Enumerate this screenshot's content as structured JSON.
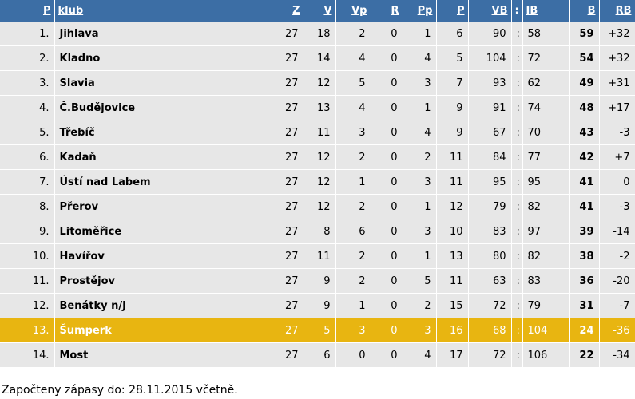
{
  "columns": {
    "pos": "P",
    "club": "klub",
    "z": "Z",
    "v": "V",
    "vp": "Vp",
    "r": "R",
    "pp": "Pp",
    "p": "P",
    "vb": "VB",
    "colon": ":",
    "ib": "IB",
    "b": "B",
    "rb": "RB"
  },
  "rows": [
    {
      "pos": "1.",
      "club": "Jihlava",
      "z": "27",
      "v": "18",
      "vp": "2",
      "r": "0",
      "pp": "1",
      "p": "6",
      "vb": "90",
      "ib": "58",
      "b": "59",
      "rb": "+32"
    },
    {
      "pos": "2.",
      "club": "Kladno",
      "z": "27",
      "v": "14",
      "vp": "4",
      "r": "0",
      "pp": "4",
      "p": "5",
      "vb": "104",
      "ib": "72",
      "b": "54",
      "rb": "+32"
    },
    {
      "pos": "3.",
      "club": "Slavia",
      "z": "27",
      "v": "12",
      "vp": "5",
      "r": "0",
      "pp": "3",
      "p": "7",
      "vb": "93",
      "ib": "62",
      "b": "49",
      "rb": "+31"
    },
    {
      "pos": "4.",
      "club": "Č.Budějovice",
      "z": "27",
      "v": "13",
      "vp": "4",
      "r": "0",
      "pp": "1",
      "p": "9",
      "vb": "91",
      "ib": "74",
      "b": "48",
      "rb": "+17"
    },
    {
      "pos": "5.",
      "club": "Třebíč",
      "z": "27",
      "v": "11",
      "vp": "3",
      "r": "0",
      "pp": "4",
      "p": "9",
      "vb": "67",
      "ib": "70",
      "b": "43",
      "rb": "-3"
    },
    {
      "pos": "6.",
      "club": "Kadaň",
      "z": "27",
      "v": "12",
      "vp": "2",
      "r": "0",
      "pp": "2",
      "p": "11",
      "vb": "84",
      "ib": "77",
      "b": "42",
      "rb": "+7"
    },
    {
      "pos": "7.",
      "club": "Ústí nad Labem",
      "z": "27",
      "v": "12",
      "vp": "1",
      "r": "0",
      "pp": "3",
      "p": "11",
      "vb": "95",
      "ib": "95",
      "b": "41",
      "rb": "0"
    },
    {
      "pos": "8.",
      "club": "Přerov",
      "z": "27",
      "v": "12",
      "vp": "2",
      "r": "0",
      "pp": "1",
      "p": "12",
      "vb": "79",
      "ib": "82",
      "b": "41",
      "rb": "-3"
    },
    {
      "pos": "9.",
      "club": "Litoměřice",
      "z": "27",
      "v": "8",
      "vp": "6",
      "r": "0",
      "pp": "3",
      "p": "10",
      "vb": "83",
      "ib": "97",
      "b": "39",
      "rb": "-14"
    },
    {
      "pos": "10.",
      "club": "Havířov",
      "z": "27",
      "v": "11",
      "vp": "2",
      "r": "0",
      "pp": "1",
      "p": "13",
      "vb": "80",
      "ib": "82",
      "b": "38",
      "rb": "-2"
    },
    {
      "pos": "11.",
      "club": "Prostějov",
      "z": "27",
      "v": "9",
      "vp": "2",
      "r": "0",
      "pp": "5",
      "p": "11",
      "vb": "63",
      "ib": "83",
      "b": "36",
      "rb": "-20"
    },
    {
      "pos": "12.",
      "club": "Benátky n/J",
      "z": "27",
      "v": "9",
      "vp": "1",
      "r": "0",
      "pp": "2",
      "p": "15",
      "vb": "72",
      "ib": "79",
      "b": "31",
      "rb": "-7"
    },
    {
      "pos": "13.",
      "club": "Šumperk",
      "z": "27",
      "v": "5",
      "vp": "3",
      "r": "0",
      "pp": "3",
      "p": "16",
      "vb": "68",
      "ib": "104",
      "b": "24",
      "rb": "-36",
      "highlight": true
    },
    {
      "pos": "14.",
      "club": "Most",
      "z": "27",
      "v": "6",
      "vp": "0",
      "r": "0",
      "pp": "4",
      "p": "17",
      "vb": "72",
      "ib": "106",
      "b": "22",
      "rb": "-34"
    }
  ],
  "row_separator": ":",
  "footer_note": "Započteny zápasy do: 28.11.2015 včetně.",
  "colors": {
    "header_bg": "#3c6ea5",
    "row_bg": "#e7e7e7",
    "highlight_bg": "#e8b511"
  }
}
